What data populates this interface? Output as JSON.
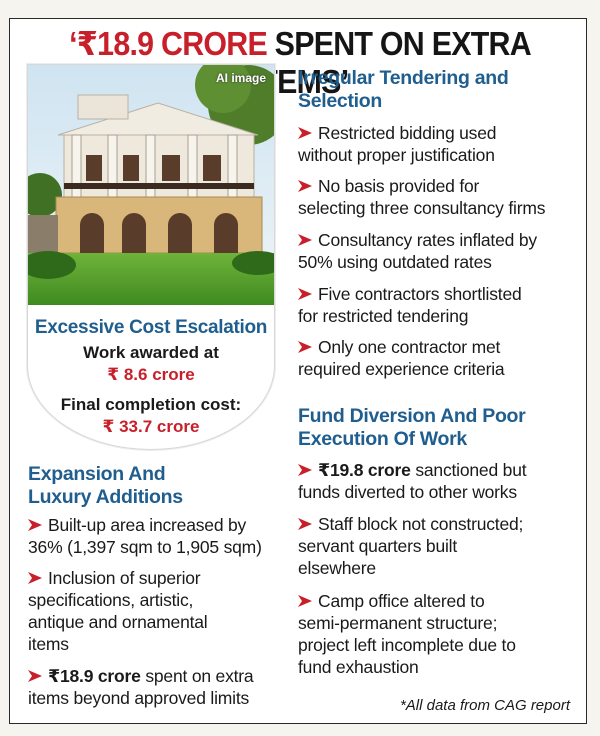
{
  "header": {
    "title_red": "‘₹18.9 CRORE",
    "title_dark": "SPENT ON EXTRA ITEMS’"
  },
  "card": {
    "image_tag": "AI image",
    "cost_title": "Excessive Cost Escalation",
    "awarded_label": "Work awarded at",
    "awarded_value": "₹ 8.6 crore",
    "final_label": "Final completion cost:",
    "final_value": "₹ 33.7 crore"
  },
  "expansion": {
    "heading_line1": "Expansion And",
    "heading_line2": "Luxury Additions",
    "items": [
      {
        "lines": [
          "Built-up area increased by",
          "36% (1,397 sqm to 1,905 sqm)"
        ]
      },
      {
        "lines": [
          "Inclusion of superior",
          "specifications, artistic,",
          "antique and ornamental",
          "items"
        ]
      },
      {
        "bold": "₹18.9 crore",
        "rest": " spent on extra",
        "line2": "items beyond approved limits"
      }
    ]
  },
  "irregular": {
    "heading_line1": "Irregular Tendering and",
    "heading_line2": "Selection",
    "items": [
      {
        "lines": [
          "Restricted bidding used",
          "without proper justification"
        ]
      },
      {
        "lines": [
          "No basis provided for",
          "selecting three consultancy firms"
        ]
      },
      {
        "lines": [
          "Consultancy rates inflated by",
          "50% using outdated rates"
        ]
      },
      {
        "lines": [
          "Five contractors shortlisted",
          "for restricted tendering"
        ]
      },
      {
        "lines": [
          "Only one contractor met",
          "required experience criteria"
        ]
      }
    ]
  },
  "fund": {
    "heading_line1": "Fund Diversion And Poor",
    "heading_line2": "Execution Of Work",
    "items": [
      {
        "bold": "₹19.8 crore",
        "rest": " sanctioned but",
        "line2": "funds diverted to other works"
      },
      {
        "lines": [
          "Staff block not constructed;",
          "servant quarters built",
          "elsewhere"
        ]
      },
      {
        "lines": [
          "Camp office altered to",
          "semi-permanent structure;",
          "project left incomplete due to",
          "fund exhaustion"
        ]
      }
    ]
  },
  "footer": {
    "note": "*All data from CAG report"
  },
  "colors": {
    "red": "#c8202a",
    "blue": "#1f5e8e"
  }
}
